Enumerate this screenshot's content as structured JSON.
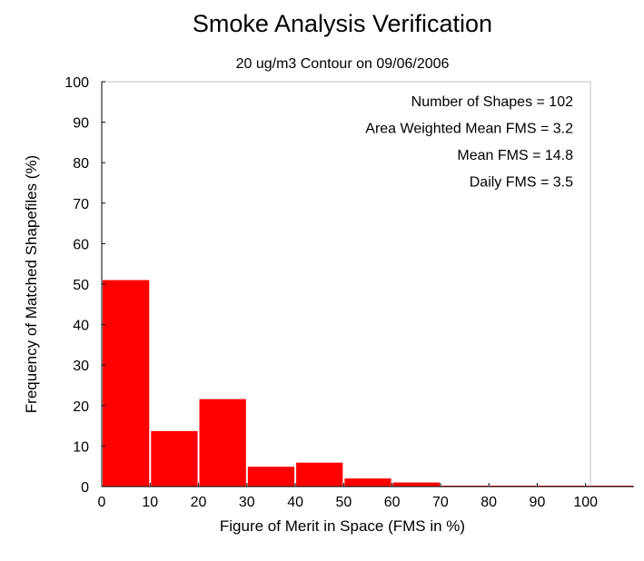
{
  "chart_data": {
    "type": "bar",
    "title": "Smoke Analysis Verification",
    "subtitle": "20 ug/m3 Contour on 09/06/2006",
    "xlabel": "Figure of Merit in Space (FMS in %)",
    "ylabel": "Frequency of Matched Shapefiles (%)",
    "xlim": [
      0,
      110
    ],
    "ylim": [
      0,
      100
    ],
    "xticks": [
      "0",
      "10",
      "20",
      "30",
      "40",
      "50",
      "60",
      "70",
      "80",
      "90",
      "100"
    ],
    "yticks": [
      "0",
      "10",
      "20",
      "30",
      "40",
      "50",
      "60",
      "70",
      "80",
      "90",
      "100"
    ],
    "bins": [
      [
        0,
        10
      ],
      [
        10,
        20
      ],
      [
        20,
        30
      ],
      [
        30,
        40
      ],
      [
        40,
        50
      ],
      [
        50,
        60
      ],
      [
        60,
        70
      ],
      [
        70,
        80
      ],
      [
        80,
        90
      ],
      [
        90,
        100
      ],
      [
        100,
        110
      ]
    ],
    "values": [
      51,
      13.7,
      21.6,
      4.9,
      5.9,
      2.0,
      1.0,
      0,
      0,
      0,
      0
    ],
    "bar_color": "#ff0000",
    "grid": false,
    "annotations": [
      "Number of Shapes = 102",
      "Area Weighted Mean FMS = 3.2",
      "Mean FMS = 14.8",
      "Daily FMS = 3.5"
    ]
  }
}
